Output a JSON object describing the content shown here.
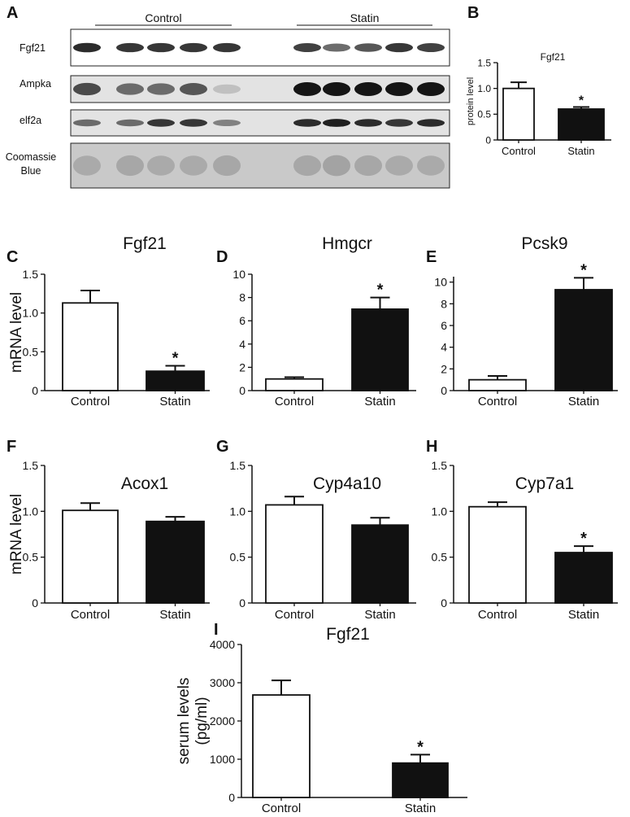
{
  "panels": {
    "A": {
      "letter": "A",
      "groups": [
        "Control",
        "Statin"
      ],
      "rows": [
        {
          "label": "Fgf21",
          "bands": [
            0.9,
            0.85,
            0.85,
            0.85,
            0.85,
            0.8,
            0.6,
            0.7,
            0.85,
            0.8
          ]
        },
        {
          "label": "Ampka",
          "bands": [
            0.75,
            0.6,
            0.6,
            0.7,
            0.2,
            1.0,
            1.0,
            1.0,
            1.0,
            1.0
          ]
        },
        {
          "label": "elf2a",
          "bands": [
            0.6,
            0.6,
            0.85,
            0.85,
            0.5,
            0.9,
            0.95,
            0.9,
            0.85,
            0.9
          ]
        },
        {
          "label": "Coomassie\nBlue",
          "bands": [
            0.3,
            0.35,
            0.3,
            0.3,
            0.35,
            0.35,
            0.4,
            0.35,
            0.3,
            0.3
          ]
        }
      ]
    }
  },
  "chart_data": [
    {
      "id": "B",
      "letter": "B",
      "type": "bar",
      "title": "Fgf21",
      "ylabel": "protein level",
      "categories": [
        "Control",
        "Statin"
      ],
      "values": [
        1.0,
        0.6
      ],
      "errors": [
        0.12,
        0.04
      ],
      "ylim": [
        0,
        1.5
      ],
      "yticks": [
        "0",
        "0.5",
        "1.0",
        "1.5"
      ],
      "tick_values": [
        0,
        0.5,
        1.0,
        1.5
      ],
      "significance": [
        "",
        "*"
      ],
      "fills": [
        "#ffffff",
        "#111111"
      ]
    },
    {
      "id": "C",
      "letter": "C",
      "type": "bar",
      "title": "Fgf21",
      "ylabel": "mRNA level",
      "categories": [
        "Control",
        "Statin"
      ],
      "values": [
        1.13,
        0.25
      ],
      "errors": [
        0.16,
        0.07
      ],
      "ylim": [
        0,
        1.5
      ],
      "yticks": [
        "0",
        "0.5",
        "1.0",
        "1.5"
      ],
      "tick_values": [
        0,
        0.5,
        1.0,
        1.5
      ],
      "significance": [
        "",
        "*"
      ],
      "fills": [
        "#ffffff",
        "#111111"
      ]
    },
    {
      "id": "D",
      "letter": "D",
      "type": "bar",
      "title": "Hmgcr",
      "ylabel": "",
      "categories": [
        "Control",
        "Statin"
      ],
      "values": [
        1.0,
        7.0
      ],
      "errors": [
        0.15,
        1.0
      ],
      "ylim": [
        0,
        10
      ],
      "yticks": [
        "0",
        "2",
        "4",
        "6",
        "8",
        "10"
      ],
      "tick_values": [
        0,
        2,
        4,
        6,
        8,
        10
      ],
      "significance": [
        "",
        "*"
      ],
      "fills": [
        "#ffffff",
        "#111111"
      ]
    },
    {
      "id": "E",
      "letter": "E",
      "type": "bar",
      "title": "Pcsk9",
      "ylabel": "",
      "categories": [
        "Control",
        "Statin"
      ],
      "values": [
        1.0,
        9.3
      ],
      "errors": [
        0.35,
        1.1
      ],
      "ylim": [
        0,
        10.5
      ],
      "yticks": [
        "0",
        "2",
        "4",
        "6",
        "8",
        "10"
      ],
      "tick_values": [
        0,
        2,
        4,
        6,
        8,
        10
      ],
      "significance": [
        "",
        "*"
      ],
      "fills": [
        "#ffffff",
        "#111111"
      ]
    },
    {
      "id": "F",
      "letter": "F",
      "type": "bar",
      "title": "Acox1",
      "ylabel": "mRNA level",
      "categories": [
        "Control",
        "Statin"
      ],
      "values": [
        1.01,
        0.89
      ],
      "errors": [
        0.08,
        0.05
      ],
      "ylim": [
        0,
        1.5
      ],
      "yticks": [
        "0",
        "0.5",
        "1.0",
        "1.5"
      ],
      "tick_values": [
        0,
        0.5,
        1.0,
        1.5
      ],
      "significance": [
        "",
        ""
      ],
      "fills": [
        "#ffffff",
        "#111111"
      ]
    },
    {
      "id": "G",
      "letter": "G",
      "type": "bar",
      "title": "Cyp4a10",
      "ylabel": "",
      "categories": [
        "Control",
        "Statin"
      ],
      "values": [
        1.07,
        0.85
      ],
      "errors": [
        0.09,
        0.08
      ],
      "ylim": [
        0,
        1.5
      ],
      "yticks": [
        "0",
        "0.5",
        "1.0",
        "1.5"
      ],
      "tick_values": [
        0,
        0.5,
        1.0,
        1.5
      ],
      "significance": [
        "",
        ""
      ],
      "fills": [
        "#ffffff",
        "#111111"
      ]
    },
    {
      "id": "H",
      "letter": "H",
      "type": "bar",
      "title": "Cyp7a1",
      "ylabel": "",
      "categories": [
        "Control",
        "Statin"
      ],
      "values": [
        1.05,
        0.55
      ],
      "errors": [
        0.05,
        0.07
      ],
      "ylim": [
        0,
        1.5
      ],
      "yticks": [
        "0",
        "0.5",
        "1.0",
        "1.5"
      ],
      "tick_values": [
        0,
        0.5,
        1.0,
        1.5
      ],
      "significance": [
        "",
        "*"
      ],
      "fills": [
        "#ffffff",
        "#111111"
      ]
    },
    {
      "id": "I",
      "letter": "I",
      "type": "bar",
      "title": "Fgf21",
      "ylabel": "serum levels\n(pg/ml)",
      "categories": [
        "Control",
        "Statin"
      ],
      "values": [
        2680,
        900
      ],
      "errors": [
        380,
        220
      ],
      "ylim": [
        0,
        4000
      ],
      "yticks": [
        "0",
        "1000",
        "2000",
        "3000",
        "4000"
      ],
      "tick_values": [
        0,
        1000,
        2000,
        3000,
        4000
      ],
      "significance": [
        "",
        "*"
      ],
      "fills": [
        "#ffffff",
        "#111111"
      ]
    }
  ]
}
